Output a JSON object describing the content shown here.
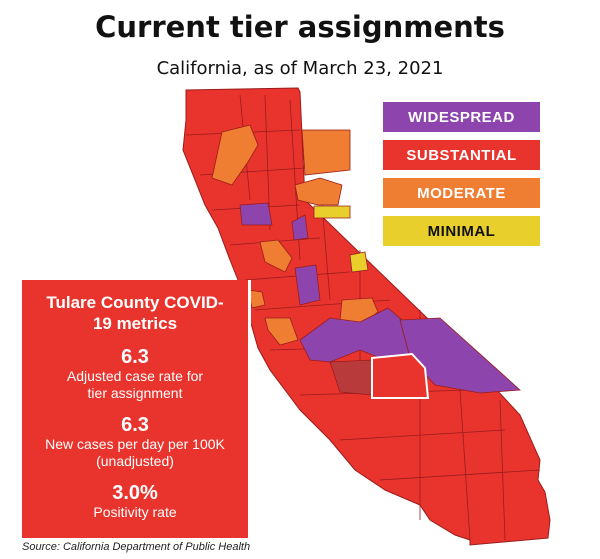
{
  "title": "Current tier assignments",
  "subtitle": "California, as of March 23, 2021",
  "legend": [
    {
      "label": "WIDESPREAD",
      "color": "#8e44ad",
      "text_color": "#ffffff"
    },
    {
      "label": "SUBSTANTIAL",
      "color": "#e8342d",
      "text_color": "#ffffff"
    },
    {
      "label": "MODERATE",
      "color": "#ef7d32",
      "text_color": "#ffffff"
    },
    {
      "label": "MINIMAL",
      "color": "#e9cf2b",
      "text_color": "#111111"
    }
  ],
  "panel": {
    "title": "Tulare County COVID-19 metrics",
    "metrics": [
      {
        "value": "6.3",
        "label": "Adjusted case rate for tier assignment"
      },
      {
        "value": "6.3",
        "label": "New cases per day per 100K (unadjusted)"
      },
      {
        "value": "3.0%",
        "label": "Positivity rate"
      }
    ]
  },
  "source": "Source:  California Department of Public Health",
  "colors": {
    "substantial": "#e8342d",
    "widespread": "#8e44ad",
    "moderate": "#ef7d32",
    "minimal": "#e9cf2b",
    "highlight": "#b83a3a",
    "border": "#9b1c1c"
  }
}
